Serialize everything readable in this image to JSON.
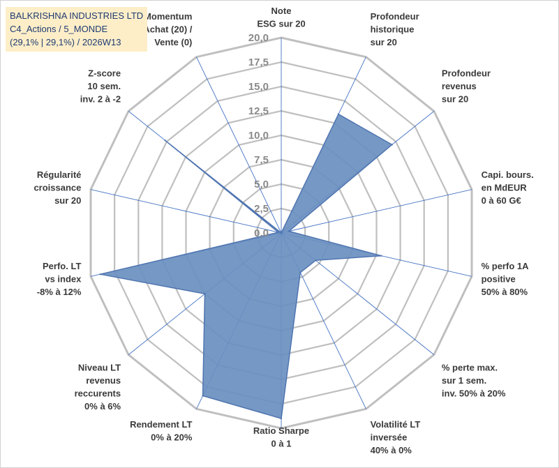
{
  "header": {
    "line1": "BALKRISHNA INDUSTRIES LTD",
    "line2": "C4_Actions / 5_MONDE",
    "line3": "(29,1% | 29,1%) / 2026W13"
  },
  "chart_data": {
    "type": "radar",
    "title": "BALKRISHNA INDUSTRIES LTD",
    "rmin": 0,
    "rmax": 20,
    "ticks": [
      0,
      2.5,
      5,
      7.5,
      10,
      12.5,
      15,
      17.5,
      20
    ],
    "tick_labels": [
      "0,0",
      "2,5",
      "5,0",
      "7,5",
      "10,0",
      "12,5",
      "15,0",
      "17,5",
      "20,0"
    ],
    "grid_color": "#bfbfbf",
    "spoke_color": "#4472c4",
    "series_fill": "#6a8fc0",
    "series_stroke": "#4f75b0",
    "axes": [
      {
        "lines": [
          "Note",
          "ESG sur 20"
        ]
      },
      {
        "lines": [
          "Profondeur",
          "historique",
          "sur 20"
        ]
      },
      {
        "lines": [
          "Profondeur",
          "revenus",
          "sur 20"
        ]
      },
      {
        "lines": [
          "Capi. bours.",
          "en MdEUR",
          "0 à 60 G€"
        ]
      },
      {
        "lines": [
          "% perfo 1A",
          "positive",
          "50% à 80%"
        ]
      },
      {
        "lines": [
          "% perte max.",
          "sur 1 sem.",
          "inv. 50% à 20%"
        ]
      },
      {
        "lines": [
          "Volatilité LT",
          "inversée",
          "40% à 0%"
        ]
      },
      {
        "lines": [
          "Ratio Sharpe",
          "0 à 1"
        ]
      },
      {
        "lines": [
          "Rendement LT",
          "0% à 20%"
        ]
      },
      {
        "lines": [
          "Niveau LT",
          "revenus",
          "reccurents",
          "0% à 6%"
        ]
      },
      {
        "lines": [
          "Perfo. LT",
          "vs index",
          "-8% à 12%"
        ]
      },
      {
        "lines": [
          "Régularité",
          "croissance",
          "sur 20"
        ]
      },
      {
        "lines": [
          "Z-score",
          "10 sem.",
          "inv. 2 à -2"
        ]
      },
      {
        "lines": [
          "Momentum",
          "Achat (20) /",
          "Vente (0)"
        ]
      }
    ],
    "series": [
      {
        "name": "BALKRISHNA INDUSTRIES LTD",
        "values": [
          0,
          13.5,
          14.5,
          0.8,
          10.5,
          4.5,
          4.5,
          19.0,
          18.5,
          10.0,
          19.0,
          0.3,
          15.2,
          0
        ]
      }
    ]
  }
}
